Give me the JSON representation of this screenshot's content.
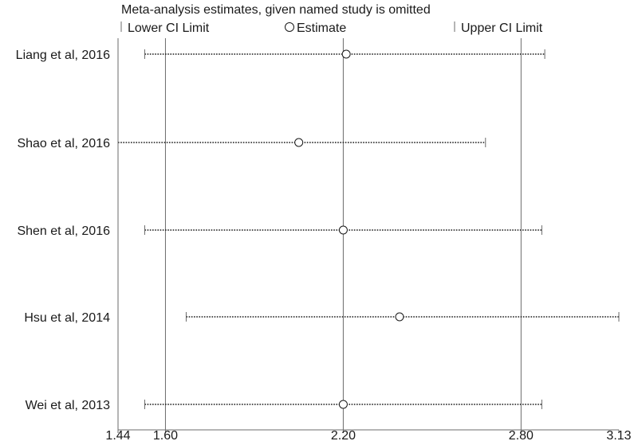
{
  "chart_data": {
    "type": "scatter",
    "title": "Meta-analysis estimates, given named study is omitted",
    "legend": {
      "placement": "top",
      "items": [
        {
          "symbol": "lower-tick",
          "label": "Lower CI Limit"
        },
        {
          "symbol": "circle",
          "label": "Estimate"
        },
        {
          "symbol": "upper-tick",
          "label": "Upper CI Limit"
        }
      ]
    },
    "xlim": [
      1.44,
      3.13
    ],
    "xticks": [
      {
        "value": 1.44,
        "label": "1.44"
      },
      {
        "value": 1.6,
        "label": "1.60"
      },
      {
        "value": 2.2,
        "label": "2.20"
      },
      {
        "value": 2.8,
        "label": "2.80"
      },
      {
        "value": 3.13,
        "label": "3.13"
      }
    ],
    "reference_lines": [
      1.6,
      2.2,
      2.8
    ],
    "studies": [
      {
        "label": "Liang et al, 2016",
        "lower": 1.53,
        "estimate": 2.21,
        "upper": 2.88
      },
      {
        "label": "Shao et al, 2016",
        "lower": 1.44,
        "estimate": 2.05,
        "upper": 2.68
      },
      {
        "label": "Shen et al, 2016",
        "lower": 1.53,
        "estimate": 2.2,
        "upper": 2.87
      },
      {
        "label": "Hsu et al, 2014",
        "lower": 1.67,
        "estimate": 2.39,
        "upper": 3.13
      },
      {
        "label": "Wei et al, 2013",
        "lower": 1.53,
        "estimate": 2.2,
        "upper": 2.87
      }
    ]
  }
}
